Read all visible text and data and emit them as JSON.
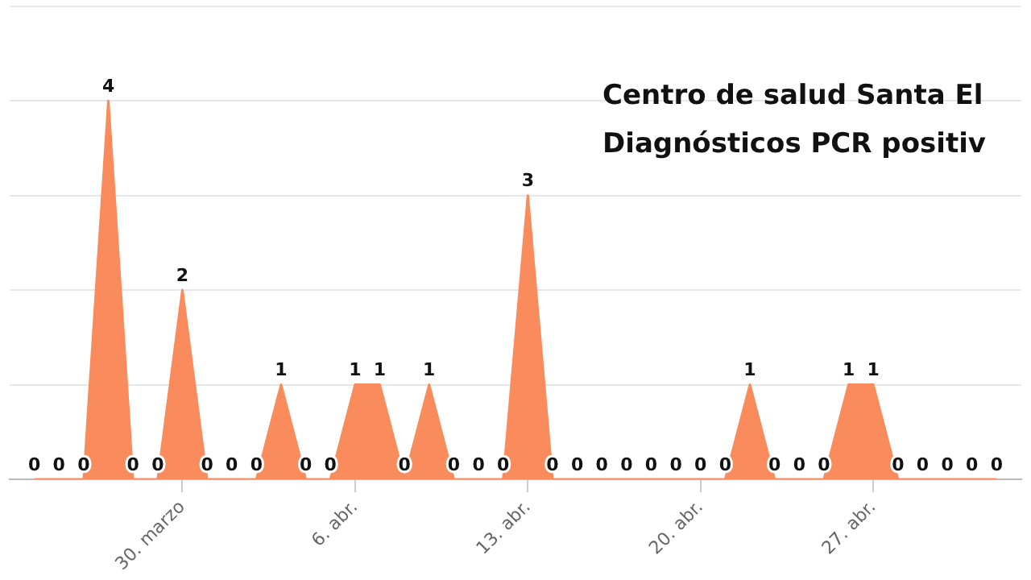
{
  "chart_data": {
    "type": "area",
    "x": [
      "--03-24",
      "--03-25",
      "--03-26",
      "--03-27",
      "--03-28",
      "--03-29",
      "--03-30",
      "--03-31",
      "--04-01",
      "--04-02",
      "--04-03",
      "--04-04",
      "--04-05",
      "--04-06",
      "--04-07",
      "--04-08",
      "--04-09",
      "--04-10",
      "--04-11",
      "--04-12",
      "--04-13",
      "--04-14",
      "--04-15",
      "--04-16",
      "--04-17",
      "--04-18",
      "--04-19",
      "--04-20",
      "--04-21",
      "--04-22",
      "--04-23",
      "--04-24",
      "--04-25",
      "--04-26",
      "--04-27",
      "--04-28",
      "--04-29",
      "--04-30",
      "--05-01",
      "--05-02"
    ],
    "values": [
      0,
      0,
      0,
      4,
      0,
      0,
      2,
      0,
      0,
      0,
      1,
      0,
      0,
      1,
      1,
      0,
      1,
      0,
      0,
      0,
      3,
      0,
      0,
      0,
      0,
      0,
      0,
      0,
      0,
      1,
      0,
      0,
      0,
      1,
      1,
      0,
      0,
      0,
      0,
      0
    ],
    "color": "#f98b5d",
    "data_labels": true,
    "annotations": [
      "Centro de salud Santa El",
      "Diagnósticos PCR positiv"
    ],
    "xlim": [
      "--03-23",
      "--05-03"
    ],
    "xticks": [
      {
        "value": "--03-30",
        "label": "30. marzo"
      },
      {
        "value": "--04-06",
        "label": "6. abr."
      },
      {
        "value": "--04-13",
        "label": "13. abr."
      },
      {
        "value": "--04-20",
        "label": "20. abr."
      },
      {
        "value": "--04-27",
        "label": "27. abr."
      }
    ],
    "ylim": [
      0,
      5
    ],
    "yticks": [
      0,
      1,
      2,
      3,
      4,
      5
    ],
    "grid": "y",
    "tick_labels": "x"
  }
}
